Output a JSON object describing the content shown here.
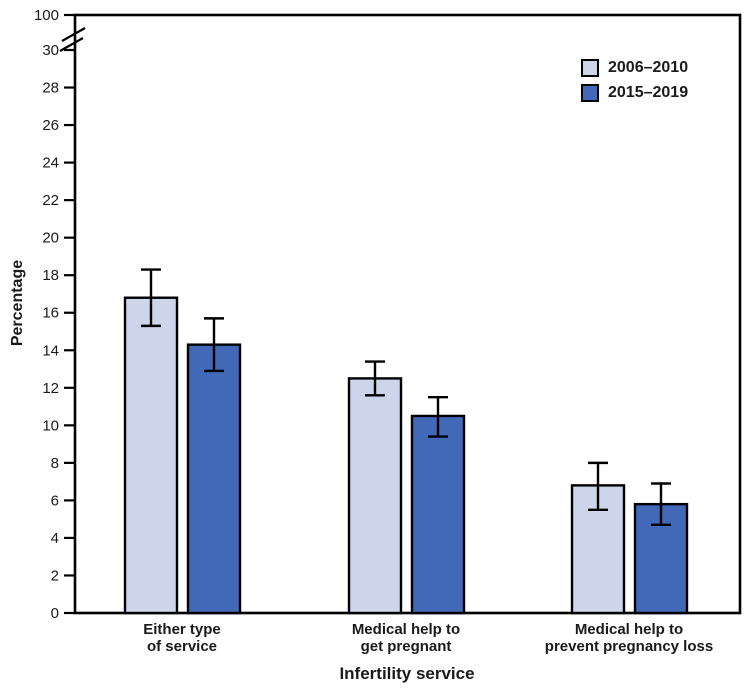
{
  "chart_data": {
    "type": "bar",
    "title": "",
    "xlabel": "Infertility service",
    "ylabel": "Percentage",
    "categories": [
      "Either type\nof service",
      "Medical help to\nget pregnant",
      "Medical help to\nprevent pregnancy loss"
    ],
    "series": [
      {
        "name": "2006–2010",
        "color": "#ccd5ea",
        "values": [
          16.8,
          12.5,
          6.8
        ],
        "ci_low": [
          15.3,
          11.6,
          5.5
        ],
        "ci_high": [
          18.3,
          13.4,
          8.0
        ]
      },
      {
        "name": "2015–2019",
        "color": "#4169b8",
        "values": [
          14.3,
          10.5,
          5.8
        ],
        "ci_low": [
          12.9,
          9.4,
          4.7
        ],
        "ci_high": [
          15.7,
          11.5,
          6.9
        ]
      }
    ],
    "y_axis": {
      "ticks": [
        0,
        2,
        4,
        6,
        8,
        10,
        12,
        14,
        16,
        18,
        20,
        22,
        24,
        26,
        28,
        30
      ],
      "break_label": "100",
      "display_max": 30,
      "axis_break": true
    },
    "error_bars": true,
    "grid": false,
    "legend_position": "top-right",
    "colors": {
      "axis": "#000000",
      "text": "#1a1a1a",
      "background": "#ffffff"
    }
  }
}
